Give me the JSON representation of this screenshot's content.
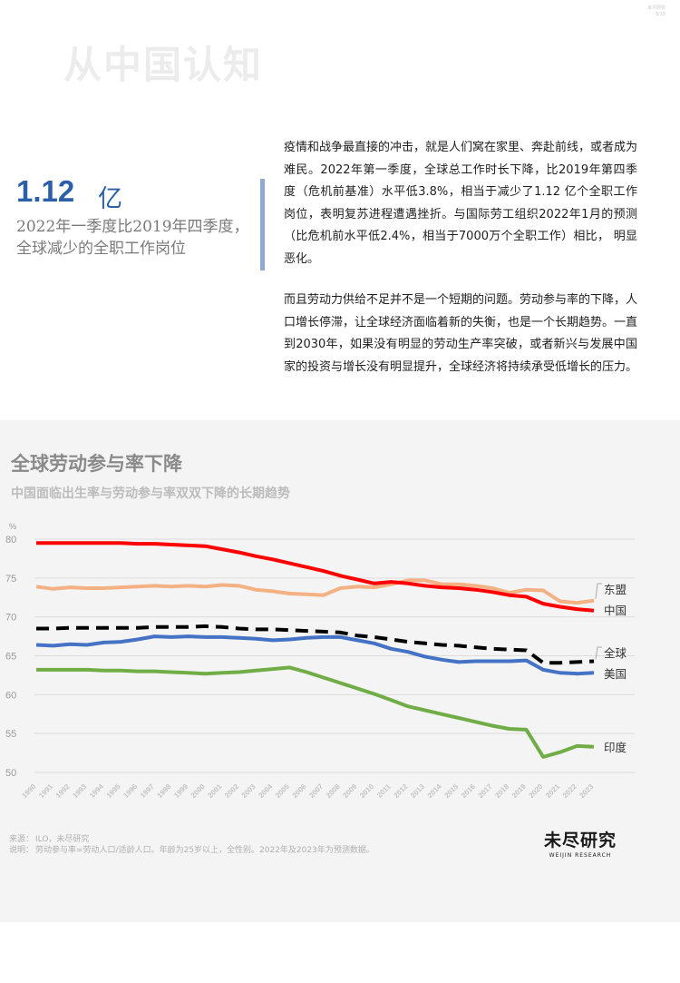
{
  "header": {
    "watermark_title": "从中国认知",
    "corner_line1": "未尽研究",
    "corner_line2": "3/15"
  },
  "highlight": {
    "number": "1.12",
    "unit": "亿",
    "caption_line1": "2022年一季度比2019年四季度，",
    "caption_line2": "全球减少的全职工作岗位"
  },
  "body": {
    "paragraph1": "疫情和战争最直接的冲击，就是人们窝在家里、奔赴前线，或者成为难民。2022年第一季度，全球总工作时长下降，比2019年第四季度（危机前基准）水平低3.8%，相当于减少了1.12 亿个全职工作岗位，表明复苏进程遭遇挫折。与国际劳工组织2022年1月的预测（比危机前水平低2.4%，相当于7000万个全职工作）相比， 明显恶化。",
    "paragraph2": "而且劳动力供给不足并不是一个短期的问题。劳动参与率的下降，人口增长停滞，让全球经济面临着新的失衡，也是一个长期趋势。一直到2030年，如果没有明显的劳动生产率突破，或者新兴与发展中国家的投资与增长没有明显提升，全球经济将持续承受低增长的压力。"
  },
  "chart": {
    "title": "全球劳动参与率下降",
    "subtitle": "中国面临出生率与劳动参与率双双下降的长期趋势",
    "source_label": "来源：",
    "source_text": "ILO，未尽研究",
    "note_label": "说明：",
    "note_text": "劳动参与率=劳动人口/适龄人口。年龄为25岁以上，全性别。2022年及2023年为预测数据。",
    "logo_text": "未尽研究",
    "logo_sub": "WEIJIN RESEARCH"
  },
  "chart_data": {
    "type": "line",
    "title": "全球劳动参与率下降",
    "subtitle": "中国面临出生率与劳动参与率双双下降的长期趋势",
    "ylabel": "%",
    "ylim": [
      50,
      80
    ],
    "yticks": [
      50,
      55,
      60,
      65,
      70,
      75,
      80
    ],
    "grid": true,
    "legend": "right-end labels",
    "x": [
      "1990",
      "1991",
      "1992",
      "1993",
      "1994",
      "1995",
      "1996",
      "1997",
      "1998",
      "1999",
      "2000",
      "2001",
      "2002",
      "2003",
      "2004",
      "2005",
      "2006",
      "2007",
      "2008",
      "2009",
      "2010",
      "2011",
      "2012",
      "2013",
      "2014",
      "2015",
      "2016",
      "2017",
      "2018",
      "2019",
      "2020",
      "2021",
      "2022",
      "2023"
    ],
    "series": [
      {
        "name": "东盟",
        "color": "#f4b183",
        "dash": false,
        "values": [
          73.9,
          73.6,
          73.8,
          73.7,
          73.7,
          73.8,
          73.9,
          74.0,
          73.9,
          74.0,
          73.9,
          74.1,
          74.0,
          73.5,
          73.3,
          73.0,
          72.9,
          72.8,
          73.7,
          73.9,
          73.8,
          74.2,
          74.7,
          74.7,
          74.2,
          74.2,
          74.0,
          73.7,
          73.1,
          73.5,
          73.4,
          72.0,
          71.8,
          72.1
        ]
      },
      {
        "name": "中国",
        "color": "#ff0000",
        "dash": false,
        "values": [
          79.5,
          79.5,
          79.5,
          79.5,
          79.5,
          79.5,
          79.4,
          79.4,
          79.3,
          79.2,
          79.1,
          78.7,
          78.3,
          77.8,
          77.4,
          76.9,
          76.4,
          75.9,
          75.3,
          74.8,
          74.3,
          74.5,
          74.3,
          74.0,
          73.8,
          73.7,
          73.5,
          73.2,
          72.8,
          72.6,
          71.7,
          71.3,
          71.0,
          70.8
        ]
      },
      {
        "name": "全球",
        "color": "#000000",
        "dash": true,
        "values": [
          68.5,
          68.5,
          68.6,
          68.6,
          68.6,
          68.6,
          68.6,
          68.7,
          68.7,
          68.7,
          68.8,
          68.7,
          68.5,
          68.4,
          68.4,
          68.3,
          68.2,
          68.1,
          68.0,
          67.6,
          67.4,
          67.1,
          66.8,
          66.6,
          66.4,
          66.3,
          66.1,
          65.9,
          65.8,
          65.7,
          64.1,
          64.1,
          64.2,
          64.3
        ]
      },
      {
        "name": "美国",
        "color": "#4472c4",
        "dash": false,
        "values": [
          66.4,
          66.3,
          66.5,
          66.4,
          66.7,
          66.8,
          67.1,
          67.5,
          67.4,
          67.5,
          67.4,
          67.4,
          67.3,
          67.2,
          67.0,
          67.1,
          67.3,
          67.4,
          67.4,
          67.0,
          66.6,
          65.9,
          65.5,
          64.9,
          64.5,
          64.2,
          64.3,
          64.3,
          64.3,
          64.4,
          63.2,
          62.8,
          62.7,
          62.8
        ]
      },
      {
        "name": "印度",
        "color": "#70ad47",
        "dash": false,
        "values": [
          63.2,
          63.2,
          63.2,
          63.2,
          63.1,
          63.1,
          63.0,
          63.0,
          62.9,
          62.8,
          62.7,
          62.8,
          62.9,
          63.1,
          63.3,
          63.5,
          62.9,
          62.2,
          61.5,
          60.8,
          60.1,
          59.3,
          58.5,
          58.0,
          57.5,
          57.0,
          56.5,
          56.0,
          55.6,
          55.5,
          52.0,
          52.6,
          53.4,
          53.3
        ]
      }
    ]
  }
}
